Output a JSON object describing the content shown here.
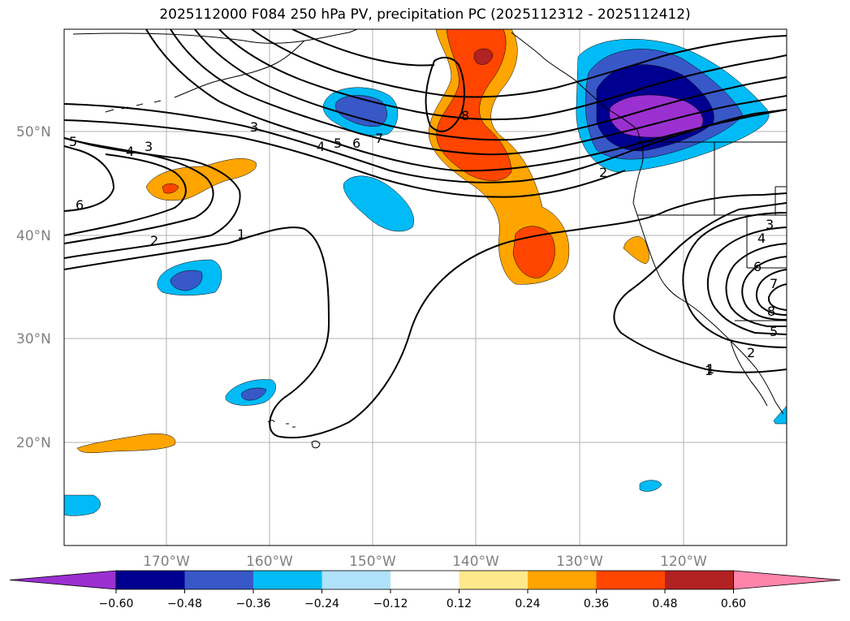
{
  "title": "2025112000 F084 250 hPa PV, precipitation PC (2025112312 - 2025112412)",
  "lat_labels": [
    "50°N",
    "40°N",
    "30°N",
    "20°N"
  ],
  "lon_labels": [
    "170°W",
    "160°W",
    "150°W",
    "140°W",
    "130°W",
    "120°W"
  ],
  "colorbar": {
    "colors": [
      "#9b30d0",
      "#000090",
      "#3858c8",
      "#00bbf6",
      "#b0e2fb",
      "#ffffff",
      "#ffe98c",
      "#ffa500",
      "#ff4500",
      "#b22222",
      "#ff84ab"
    ],
    "ticks": [
      "−0.60",
      "−0.48",
      "−0.36",
      "−0.24",
      "−0.12",
      "0.12",
      "0.24",
      "0.36",
      "0.48",
      "0.60"
    ]
  },
  "pv_contour_labels": [
    "1",
    "2",
    "3",
    "4",
    "5",
    "6",
    "7",
    "8",
    "1",
    "2",
    "3",
    "4",
    "5",
    "6",
    "7",
    "8",
    "6",
    "5",
    "4",
    "3",
    "1",
    "2"
  ]
}
